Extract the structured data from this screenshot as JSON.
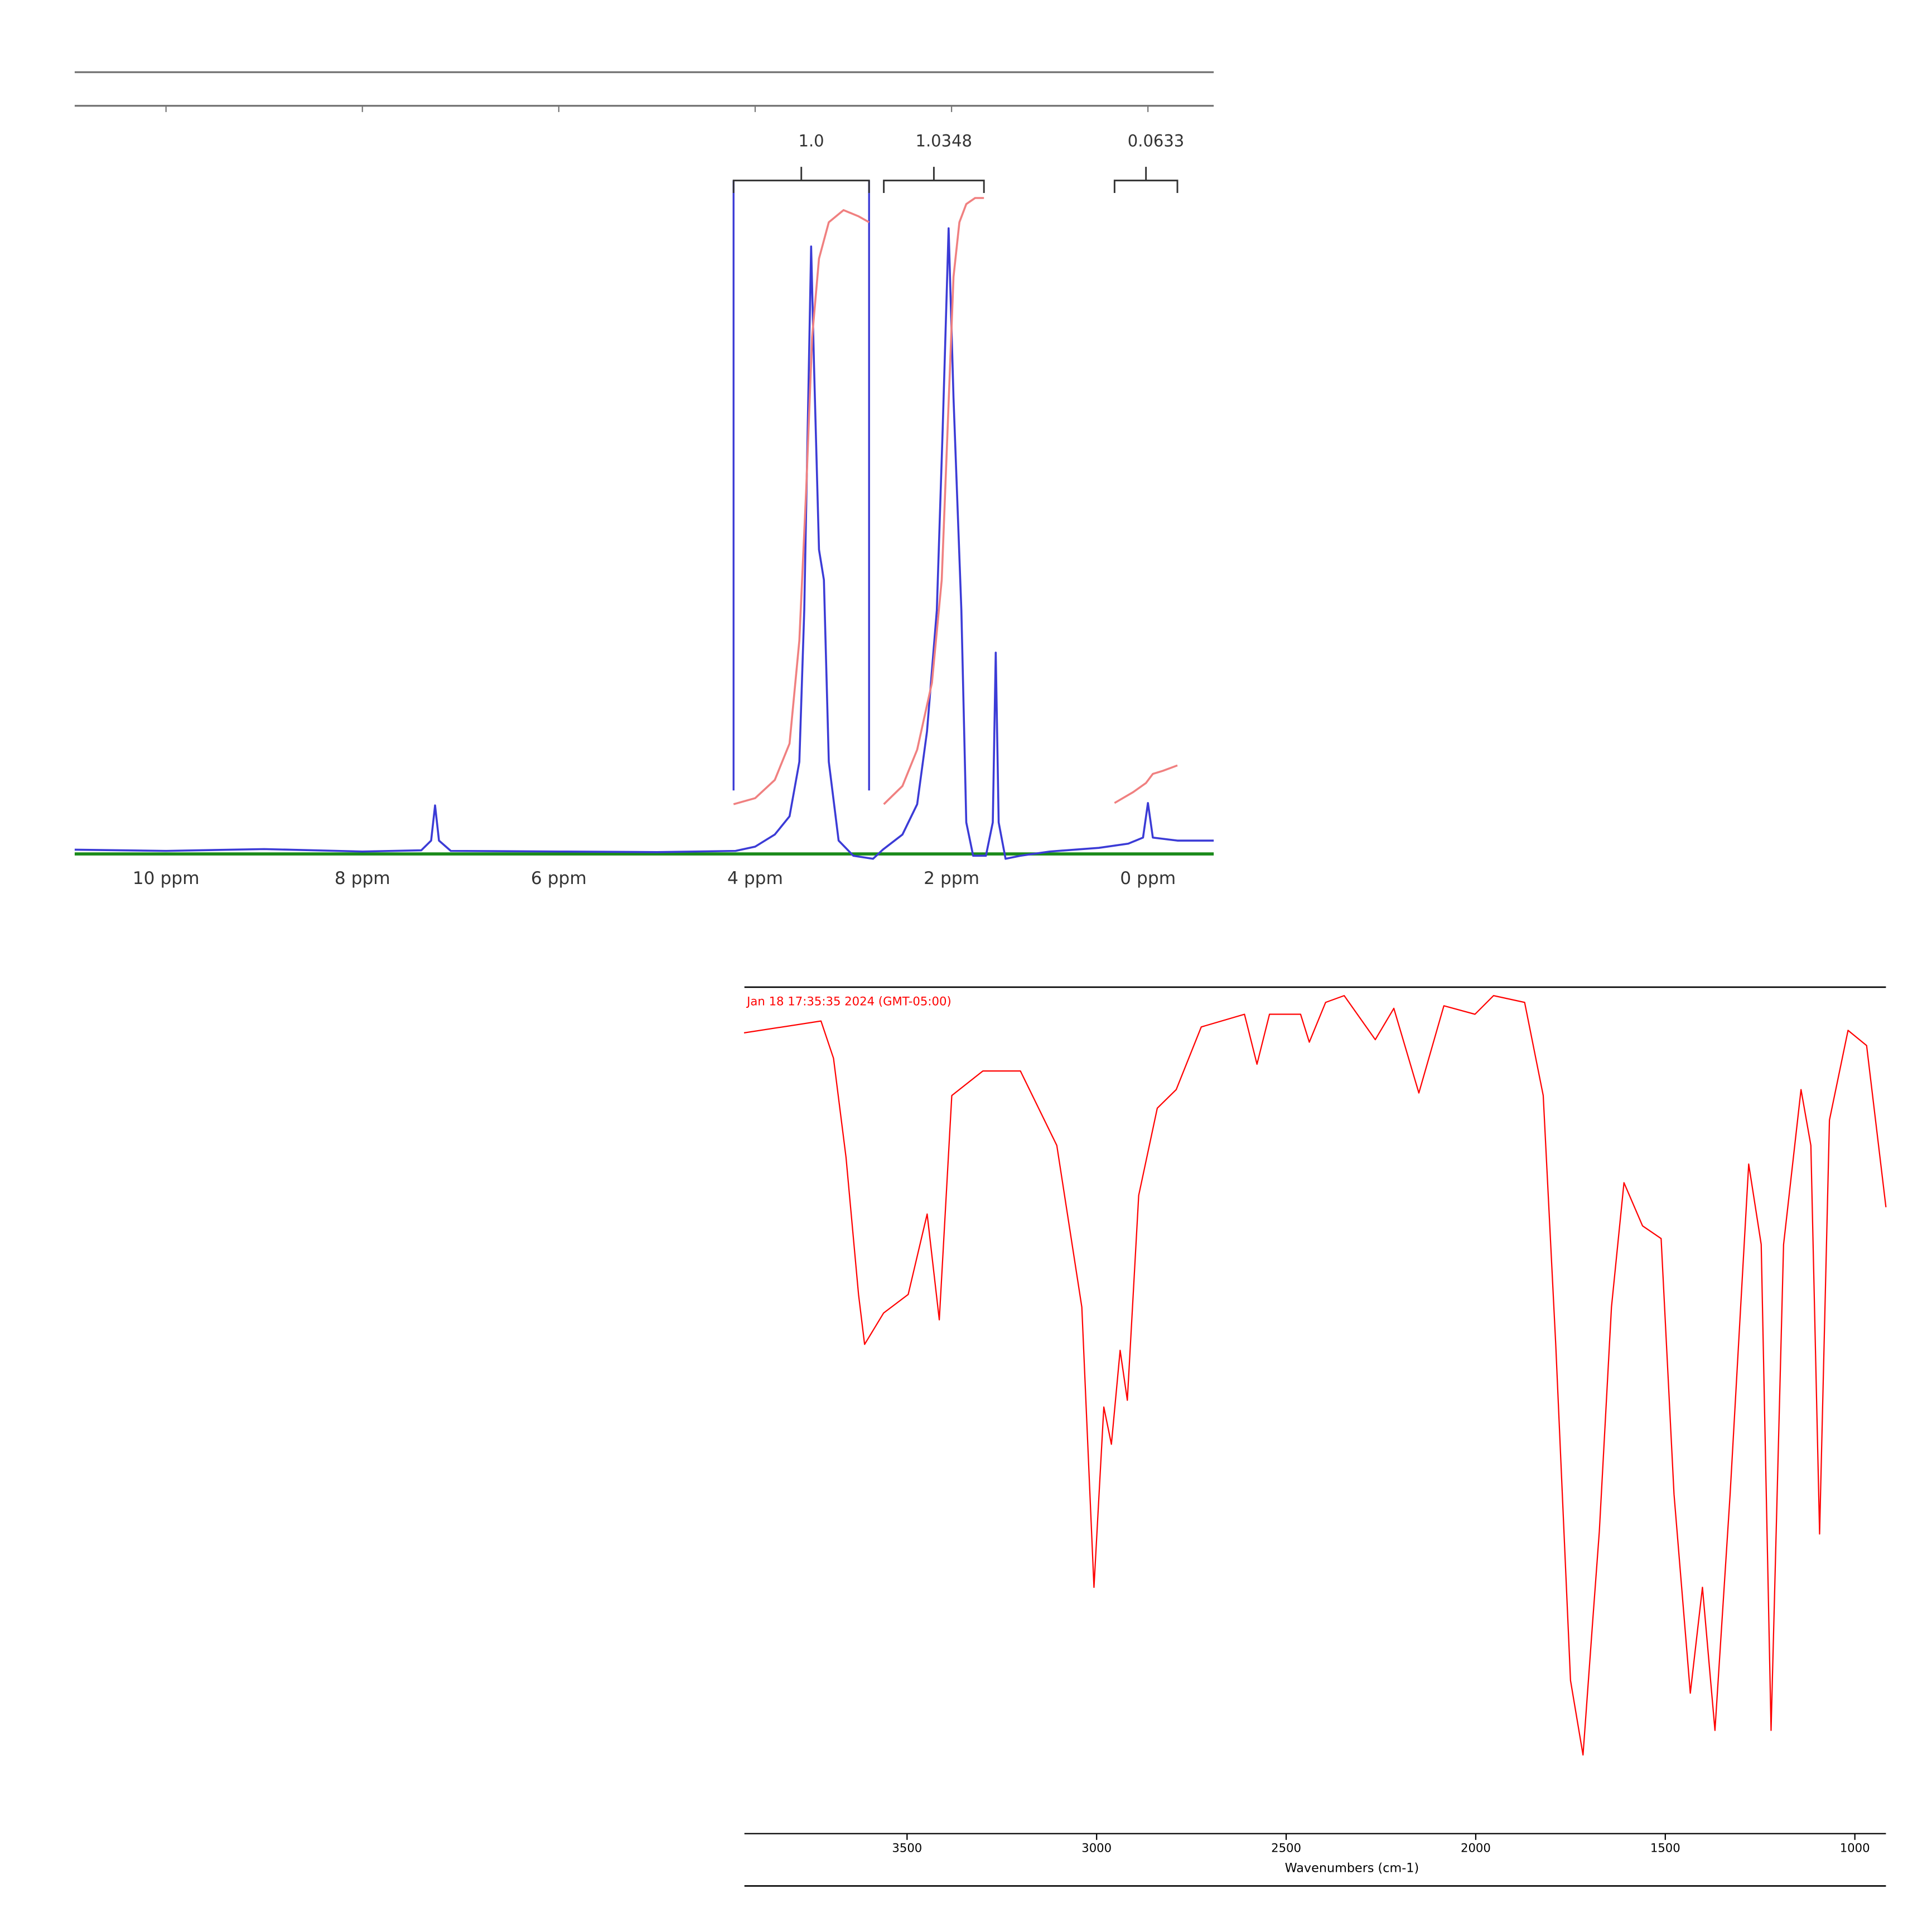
{
  "chart_data": [
    {
      "type": "line",
      "xlim": [
        10.93,
        -0.67
      ],
      "ylim": [
        -1,
        123
      ],
      "xticks": [
        {
          "value": 10,
          "label": "10 ppm"
        },
        {
          "value": 8,
          "label": "8 ppm"
        },
        {
          "value": 6,
          "label": "6 ppm"
        },
        {
          "value": 4,
          "label": "4 ppm"
        },
        {
          "value": 2,
          "label": "2 ppm"
        },
        {
          "value": 0,
          "label": "0 ppm"
        }
      ],
      "series": [
        {
          "color": "#3b3bd6",
          "x": [
            10.93,
            10,
            9,
            8,
            7.4,
            7.3,
            7.26,
            7.22,
            7.1,
            6,
            5,
            4.2,
            4.0,
            3.8,
            3.65,
            3.55,
            3.5,
            3.43,
            3.4,
            3.35,
            3.3,
            3.25,
            3.15,
            3.0,
            2.8,
            2.7,
            2.5,
            2.35,
            2.25,
            2.15,
            2.09,
            2.03,
            1.98,
            1.9,
            1.85,
            1.78,
            1.65,
            1.58,
            1.55,
            1.52,
            1.45,
            1.3,
            1.0,
            0.5,
            0.2,
            0.05,
            0,
            -0.05,
            -0.3,
            -0.67
          ],
          "values": [
            0.5,
            0.3,
            0.6,
            0.2,
            0.4,
            2,
            7.8,
            2,
            0.3,
            0.2,
            0.1,
            0.3,
            1,
            3,
            6,
            15,
            40,
            100,
            80,
            50,
            45,
            15,
            2,
            -0.5,
            -1,
            0.5,
            3,
            8,
            20,
            40,
            70,
            103,
            75,
            40,
            5,
            -0.5,
            -0.5,
            5,
            33,
            5,
            -1,
            -0.5,
            0.2,
            0.8,
            1.5,
            2.5,
            8.2,
            2.5,
            2,
            2
          ]
        },
        {
          "color": "#f08080",
          "x": [
            4.22,
            4.0,
            3.8,
            3.65,
            3.55,
            3.48,
            3.42,
            3.35,
            3.25,
            3.1,
            2.95,
            2.84
          ],
          "values": [
            8,
            9,
            12,
            18,
            35,
            60,
            85,
            98,
            104,
            106,
            105,
            104
          ]
        },
        {
          "color": "#f08080",
          "x": [
            2.69,
            2.5,
            2.35,
            2.2,
            2.1,
            2.04,
            1.98,
            1.92,
            1.85,
            1.76,
            1.67
          ],
          "values": [
            8,
            11,
            17,
            28,
            45,
            70,
            95,
            104,
            107,
            108,
            108
          ]
        },
        {
          "color": "#f08080",
          "x": [
            0.34,
            0.15,
            0.02,
            -0.05,
            -0.15,
            -0.3
          ],
          "values": [
            8.2,
            10,
            11.5,
            13,
            13.5,
            14.4
          ]
        }
      ],
      "baseline": {
        "value": -0.2,
        "color": "#1a8a1a"
      },
      "region_lines": {
        "values": [
          4.22,
          2.84
        ],
        "color": "#3b3bd6"
      },
      "integrals": [
        {
          "label": "1.0",
          "range": [
            4.22,
            2.84
          ]
        },
        {
          "label": "1.0348",
          "range": [
            2.69,
            1.67
          ]
        },
        {
          "label": "0.0633",
          "range": [
            0.34,
            -0.3
          ]
        }
      ]
    },
    {
      "type": "line",
      "annotation": "Jan 18 17:35:35 2024 (GMT-05:00)",
      "xlabel": "Wavenumbers (cm-1)",
      "xlim": [
        3929,
        918
      ],
      "ylim": [
        0,
        100
      ],
      "xticks": [
        3500,
        3000,
        2500,
        2000,
        1500,
        1000
      ],
      "series": [
        {
          "color": "#ff0000",
          "x": [
            3930,
            3727,
            3694,
            3661,
            3628,
            3612,
            3562,
            3497,
            3447,
            3415,
            3382,
            3300,
            3201,
            3105,
            3039,
            3007,
            2981,
            2961,
            2938,
            2919,
            2889,
            2840,
            2790,
            2724,
            2610,
            2577,
            2544,
            2462,
            2439,
            2396,
            2347,
            2265,
            2216,
            2150,
            2084,
            2002,
            1953,
            1871,
            1822,
            1789,
            1750,
            1717,
            1691,
            1674,
            1642,
            1609,
            1560,
            1511,
            1477,
            1434,
            1402,
            1369,
            1329,
            1280,
            1247,
            1221,
            1188,
            1142,
            1116,
            1093,
            1067,
            1018,
            969,
            918
          ],
          "values": [
            94.6,
            96,
            91.6,
            79.9,
            63.7,
            57.8,
            61.5,
            63.7,
            73.2,
            60.7,
            87.2,
            90.1,
            90.1,
            81.3,
            62.2,
            29.1,
            50.4,
            46,
            57.1,
            51.2,
            75.4,
            85.7,
            87.9,
            95.3,
            96.8,
            90.9,
            96.8,
            96.8,
            93.5,
            98.2,
            99,
            93.8,
            97.5,
            87.5,
            97.8,
            96.8,
            99,
            98.2,
            87.2,
            57.8,
            18.1,
            9.3,
            25.4,
            35.7,
            62.2,
            76.9,
            71.8,
            70.3,
            40.1,
            16.6,
            29.1,
            12.2,
            40.1,
            79.1,
            69.6,
            12.2,
            69.6,
            87.9,
            81.3,
            35.4,
            84.3,
            94.9,
            93.1,
            74
          ]
        }
      ]
    }
  ]
}
